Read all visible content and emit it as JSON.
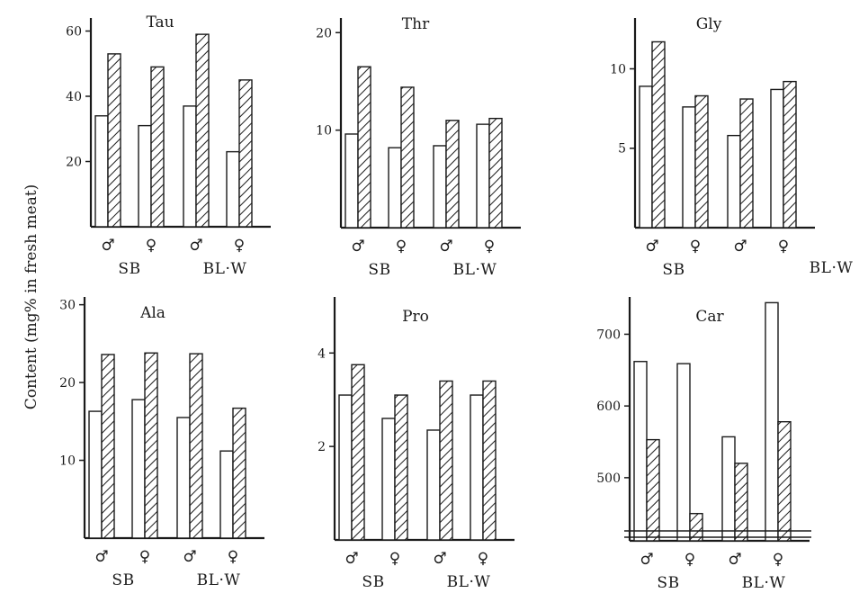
{
  "figure": {
    "ylabel": "Content (mg% in fresh meat)"
  },
  "chart_data": [
    {
      "type": "bar",
      "title": "Tau",
      "categories": [
        "♂",
        "♀",
        "♂",
        "♀"
      ],
      "groups": [
        "SB",
        "BL·W"
      ],
      "yticks": [
        20,
        40,
        60
      ],
      "ylim": [
        0,
        64
      ],
      "series": [
        {
          "values": [
            34,
            31,
            37,
            23
          ]
        },
        {
          "values": [
            53,
            49,
            59,
            45
          ]
        }
      ]
    },
    {
      "type": "bar",
      "title": "Thr",
      "categories": [
        "♂",
        "♀",
        "♂",
        "♀"
      ],
      "groups": [
        "SB",
        "BL·W"
      ],
      "yticks": [
        10,
        20
      ],
      "ylim": [
        0,
        21.5
      ],
      "series": [
        {
          "values": [
            9.6,
            8.2,
            8.4,
            10.6
          ]
        },
        {
          "values": [
            16.5,
            14.4,
            11,
            11.2
          ]
        }
      ]
    },
    {
      "type": "bar",
      "title": "Gly",
      "categories": [
        "♂",
        "♀",
        "♂",
        "♀"
      ],
      "groups": [
        "SB",
        "BL·W"
      ],
      "yticks": [
        5,
        10
      ],
      "ylim": [
        0,
        13.2
      ],
      "series": [
        {
          "values": [
            8.9,
            7.6,
            5.8,
            8.7
          ]
        },
        {
          "values": [
            11.7,
            8.3,
            8.1,
            9.2
          ]
        }
      ]
    },
    {
      "type": "bar",
      "title": "Ala",
      "categories": [
        "♂",
        "♀",
        "♂",
        "♀"
      ],
      "groups": [
        "SB",
        "BL·W"
      ],
      "yticks": [
        10,
        20,
        30
      ],
      "ylim": [
        0,
        31
      ],
      "series": [
        {
          "values": [
            16.3,
            17.8,
            15.5,
            11.2
          ]
        },
        {
          "values": [
            23.6,
            23.8,
            23.7,
            16.7
          ]
        }
      ]
    },
    {
      "type": "bar",
      "title": "Pro",
      "categories": [
        "♂",
        "♀",
        "♂",
        "♀"
      ],
      "groups": [
        "SB",
        "BL·W"
      ],
      "yticks": [
        2,
        4
      ],
      "ylim": [
        0,
        5.2
      ],
      "series": [
        {
          "values": [
            3.1,
            2.6,
            2.35,
            3.1
          ]
        },
        {
          "values": [
            3.75,
            3.1,
            3.4,
            3.4
          ]
        }
      ]
    },
    {
      "type": "bar",
      "title": "Car",
      "categories": [
        "♂",
        "♀",
        "♂",
        "♀"
      ],
      "groups": [
        "SB",
        "BL·W"
      ],
      "yticks": [
        500,
        600,
        700
      ],
      "ylim": [
        412,
        752
      ],
      "axis_break": true,
      "series": [
        {
          "values": [
            662,
            659,
            557,
            744
          ]
        },
        {
          "values": [
            553,
            450,
            520,
            578
          ]
        }
      ]
    }
  ]
}
